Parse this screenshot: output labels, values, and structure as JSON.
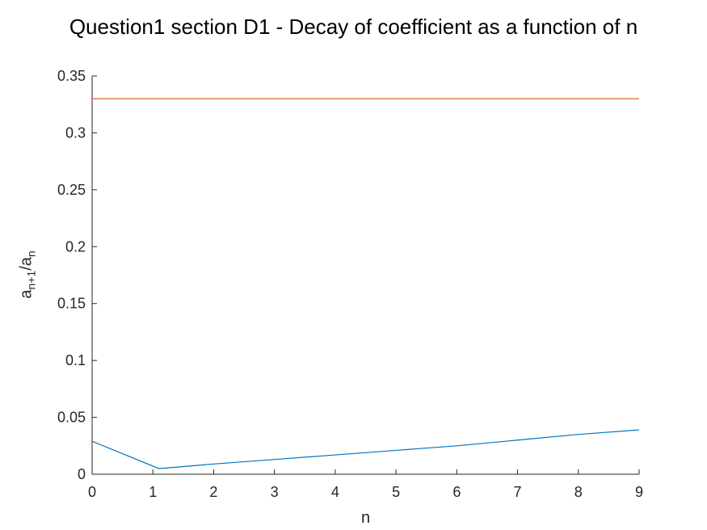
{
  "chart_data": {
    "type": "line",
    "title": "Question1 section D1 - Decay of coefficient as a function of n",
    "xlabel": "n",
    "ylabel": {
      "base1": "a",
      "sub1": "n+1",
      "sep": "/",
      "base2": "a",
      "sub2": "n"
    },
    "xlim": [
      0,
      9
    ],
    "ylim": [
      0,
      0.35
    ],
    "xticks": [
      "0",
      "1",
      "2",
      "3",
      "4",
      "5",
      "6",
      "7",
      "8",
      "9"
    ],
    "yticks": [
      "0",
      "0.05",
      "0.1",
      "0.15",
      "0.2",
      "0.25",
      "0.3",
      "0.35"
    ],
    "grid": false,
    "series": [
      {
        "color": "#0072BD",
        "x": [
          0,
          1.1,
          2,
          3,
          4,
          5,
          6,
          7,
          8,
          9
        ],
        "y": [
          0.029,
          0.005,
          0.009,
          0.013,
          0.017,
          0.021,
          0.025,
          0.03,
          0.035,
          0.039
        ]
      },
      {
        "color": "#D95319",
        "x": [
          0,
          9
        ],
        "y": [
          0.33,
          0.33
        ]
      }
    ]
  }
}
